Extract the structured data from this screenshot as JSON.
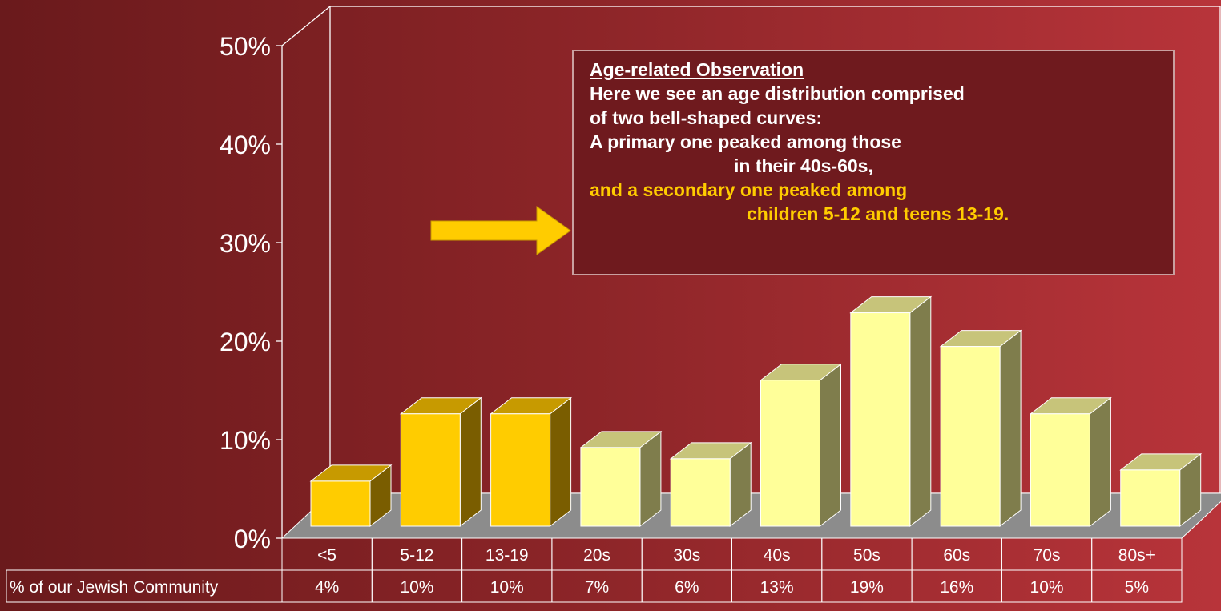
{
  "chart_data": {
    "type": "bar",
    "categories": [
      "<5",
      "5-12",
      "13-19",
      "20s",
      "30s",
      "40s",
      "50s",
      "60s",
      "70s",
      "80s+"
    ],
    "series": [
      {
        "name": "% of our Jewish Community",
        "values": [
          4,
          10,
          10,
          7,
          6,
          13,
          19,
          16,
          10,
          5
        ],
        "value_labels": [
          "4%",
          "10%",
          "10%",
          "7%",
          "6%",
          "13%",
          "19%",
          "16%",
          "10%",
          "5%"
        ]
      }
    ],
    "highlighted_categories": [
      "<5",
      "5-12",
      "13-19"
    ],
    "ylim": [
      0,
      50
    ],
    "yticks": [
      0,
      10,
      20,
      30,
      40,
      50
    ],
    "ytick_labels": [
      "0%",
      "10%",
      "20%",
      "30%",
      "40%",
      "50%"
    ],
    "title": "",
    "xlabel": "",
    "ylabel": "",
    "grid": false,
    "colors": {
      "highlight_front": "#ffcc00",
      "highlight_top": "#c79a00",
      "highlight_side": "#7a5d00",
      "normal_front": "#ffff99",
      "normal_top": "#c7c47a",
      "normal_side": "#7f7d4c",
      "floor": "#8c8c8c",
      "wall_line": "#ffffff"
    }
  },
  "callout": {
    "title": "Age-related Observation",
    "line1": "Here we see an age distribution comprised",
    "line2": "of two bell-shaped curves:",
    "line3": "A primary one peaked among those",
    "line4": "in their 40s-60s,",
    "line5": "and a secondary one peaked among",
    "line6": "children 5-12 and teens 13-19."
  },
  "arrow": {
    "icon": "right-arrow-icon",
    "color": "#ffcc00"
  },
  "table": {
    "row_label": "% of our Jewish Community"
  }
}
